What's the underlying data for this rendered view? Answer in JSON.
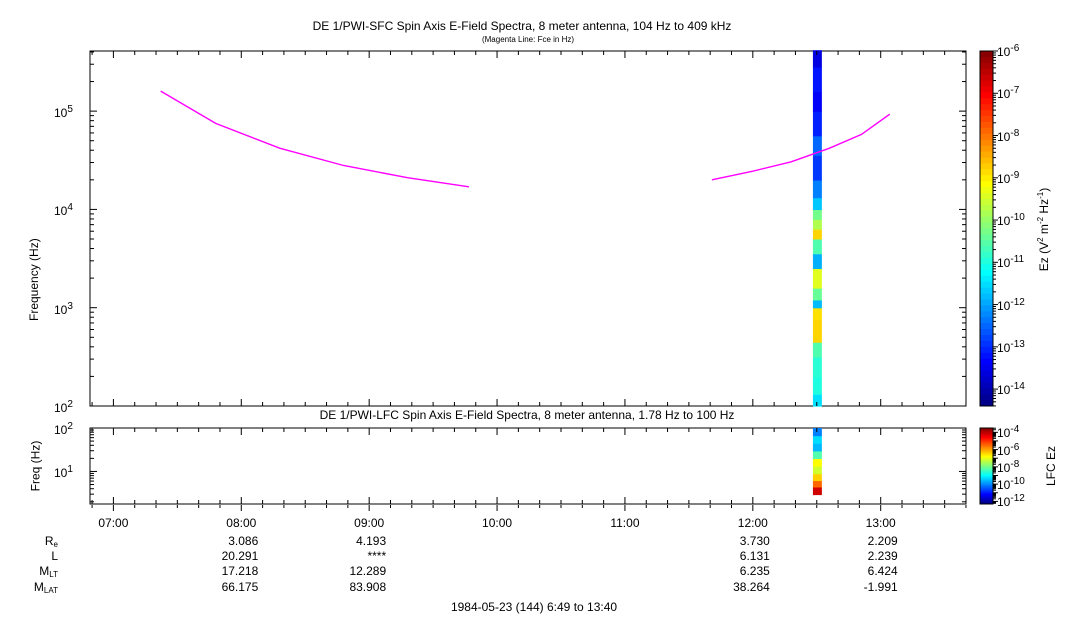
{
  "chart_data": [
    {
      "type": "heatmap",
      "title": "DE 1/PWI-SFC  Spin Axis E-Field Spectra, 8 meter antenna, 104 Hz to 409 kHz",
      "subtitle": "(Magenta Line: Fce in Hz)",
      "ylabel": "Frequency (Hz)",
      "yscale": "log",
      "ylim": [
        100,
        409000
      ],
      "yticks": [
        {
          "value": 100,
          "base": "10",
          "exp": "2"
        },
        {
          "value": 1000,
          "base": "10",
          "exp": "3"
        },
        {
          "value": 10000,
          "base": "10",
          "exp": "4"
        },
        {
          "value": 100000,
          "base": "10",
          "exp": "5"
        }
      ],
      "xlim": [
        6.817,
        13.667
      ],
      "colorbar": {
        "label_base": "Ez (V",
        "label_mid": " m",
        "label_mid2": " Hz",
        "label_end": ")",
        "label_exp1": "2",
        "label_exp2": "-2",
        "label_exp3": "-1",
        "scale": "log",
        "range": [
          -14.4,
          -6
        ],
        "ticks": [
          {
            "value": -6,
            "base": "10",
            "exp": "-6"
          },
          {
            "value": -7,
            "base": "10",
            "exp": "-7"
          },
          {
            "value": -8,
            "base": "10",
            "exp": "-8"
          },
          {
            "value": -9,
            "base": "10",
            "exp": "-9"
          },
          {
            "value": -10,
            "base": "10",
            "exp": "-10"
          },
          {
            "value": -11,
            "base": "10",
            "exp": "-11"
          },
          {
            "value": -12,
            "base": "10",
            "exp": "-12"
          },
          {
            "value": -13,
            "base": "10",
            "exp": "-13"
          },
          {
            "value": -14,
            "base": "10",
            "exp": "-14"
          }
        ]
      },
      "data_block": {
        "t_start": 12.47,
        "t_end": 12.54
      },
      "spectrum_cells": [
        {
          "f_lo": 2.0,
          "f_hi": 2.12,
          "log_ez": -11.5
        },
        {
          "f_lo": 2.12,
          "f_hi": 2.3,
          "log_ez": -11.0
        },
        {
          "f_lo": 2.3,
          "f_hi": 2.5,
          "log_ez": -10.9
        },
        {
          "f_lo": 2.5,
          "f_hi": 2.65,
          "log_ez": -10.6
        },
        {
          "f_lo": 2.65,
          "f_hi": 2.88,
          "log_ez": -8.8
        },
        {
          "f_lo": 2.88,
          "f_hi": 3.0,
          "log_ez": -8.9
        },
        {
          "f_lo": 3.0,
          "f_hi": 3.08,
          "log_ez": -11.8
        },
        {
          "f_lo": 3.08,
          "f_hi": 3.2,
          "log_ez": -10.4
        },
        {
          "f_lo": 3.2,
          "f_hi": 3.4,
          "log_ez": -9.4
        },
        {
          "f_lo": 3.4,
          "f_hi": 3.55,
          "log_ez": -11.9
        },
        {
          "f_lo": 3.55,
          "f_hi": 3.7,
          "log_ez": -10.6
        },
        {
          "f_lo": 3.7,
          "f_hi": 3.8,
          "log_ez": -8.8
        },
        {
          "f_lo": 3.8,
          "f_hi": 3.9,
          "log_ez": -9.8
        },
        {
          "f_lo": 3.9,
          "f_hi": 4.0,
          "log_ez": -10.3
        },
        {
          "f_lo": 4.0,
          "f_hi": 4.12,
          "log_ez": -11.7
        },
        {
          "f_lo": 4.12,
          "f_hi": 4.3,
          "log_ez": -12.3
        },
        {
          "f_lo": 4.3,
          "f_hi": 4.55,
          "log_ez": -12.9
        },
        {
          "f_lo": 4.55,
          "f_hi": 4.75,
          "log_ez": -12.5
        },
        {
          "f_lo": 4.75,
          "f_hi": 5.0,
          "log_ez": -13.1
        },
        {
          "f_lo": 5.0,
          "f_hi": 5.2,
          "log_ez": -13.4
        },
        {
          "f_lo": 5.2,
          "f_hi": 5.45,
          "log_ez": -13.2
        },
        {
          "f_lo": 5.45,
          "f_hi": 5.62,
          "log_ez": -13.6
        }
      ],
      "fce_line": {
        "name": "Fce",
        "segments": [
          [
            [
              7.37,
              160000
            ],
            [
              7.8,
              75000
            ],
            [
              8.3,
              42000
            ],
            [
              8.8,
              28000
            ],
            [
              9.3,
              21000
            ],
            [
              9.78,
              17000
            ]
          ],
          [
            [
              11.68,
              20000
            ],
            [
              12.0,
              24500
            ],
            [
              12.3,
              30500
            ],
            [
              12.6,
              42000
            ],
            [
              12.85,
              58000
            ],
            [
              13.07,
              93000
            ]
          ]
        ]
      }
    },
    {
      "type": "heatmap",
      "title": "DE 1/PWI-LFC  Spin Axis E-Field Spectra, 8 meter antenna, 1.78 Hz to 100 Hz",
      "ylabel": "Freq (Hz)",
      "yscale": "log",
      "ylim": [
        1.78,
        100
      ],
      "yticks": [
        {
          "value": 10,
          "base": "10",
          "exp": "1"
        },
        {
          "value": 100,
          "base": "10",
          "exp": "2"
        }
      ],
      "xlim": [
        6.817,
        13.667
      ],
      "xticks": [
        "07:00",
        "08:00",
        "09:00",
        "10:00",
        "11:00",
        "12:00",
        "13:00"
      ],
      "xtick_values": [
        7,
        8,
        9,
        10,
        11,
        12,
        13
      ],
      "colorbar": {
        "label": "LFC Ez",
        "scale": "log",
        "range": [
          -12.3,
          -3.5
        ],
        "ticks": [
          {
            "value": -4,
            "base": "10",
            "exp": "-4"
          },
          {
            "value": -6,
            "base": "10",
            "exp": "-6"
          },
          {
            "value": -8,
            "base": "10",
            "exp": "-8"
          },
          {
            "value": -10,
            "base": "10",
            "exp": "-10"
          },
          {
            "value": -12,
            "base": "10",
            "exp": "-12"
          }
        ]
      },
      "data_block": {
        "t_start": 12.47,
        "t_end": 12.54
      },
      "spectrum_cells": [
        {
          "f_lo": 0.25,
          "f_hi": 0.45,
          "log_ez": -4.2
        },
        {
          "f_lo": 0.45,
          "f_hi": 0.62,
          "log_ez": -5.5
        },
        {
          "f_lo": 0.62,
          "f_hi": 0.8,
          "log_ez": -6.4
        },
        {
          "f_lo": 0.8,
          "f_hi": 1.0,
          "log_ez": -7.2
        },
        {
          "f_lo": 1.0,
          "f_hi": 1.2,
          "log_ez": -6.8
        },
        {
          "f_lo": 1.2,
          "f_hi": 1.4,
          "log_ez": -8.3
        },
        {
          "f_lo": 1.4,
          "f_hi": 1.6,
          "log_ez": -9.6
        },
        {
          "f_lo": 1.6,
          "f_hi": 1.8,
          "log_ez": -9.3
        },
        {
          "f_lo": 1.8,
          "f_hi": 2.0,
          "log_ez": -10.1
        }
      ]
    }
  ],
  "ephemeris": {
    "rows": [
      {
        "label": "R",
        "sub": "e",
        "values": [
          "3.086",
          "4.193",
          "",
          "",
          "3.730",
          "2.209"
        ]
      },
      {
        "label": "L",
        "sub": "",
        "values": [
          "20.291",
          "****",
          "",
          "",
          "6.131",
          "2.239"
        ]
      },
      {
        "label": "M",
        "sub": "LT",
        "values": [
          "17.218",
          "12.289",
          "",
          "",
          "6.235",
          "6.424"
        ]
      },
      {
        "label": "M",
        "sub": "LAT",
        "values": [
          "66.175",
          "83.908",
          "",
          "",
          "38.264",
          "-1.991"
        ]
      }
    ],
    "times": [
      8,
      9,
      10,
      11,
      12,
      13
    ]
  },
  "footer": "1984-05-23 (144) 6:49 to 13:40"
}
